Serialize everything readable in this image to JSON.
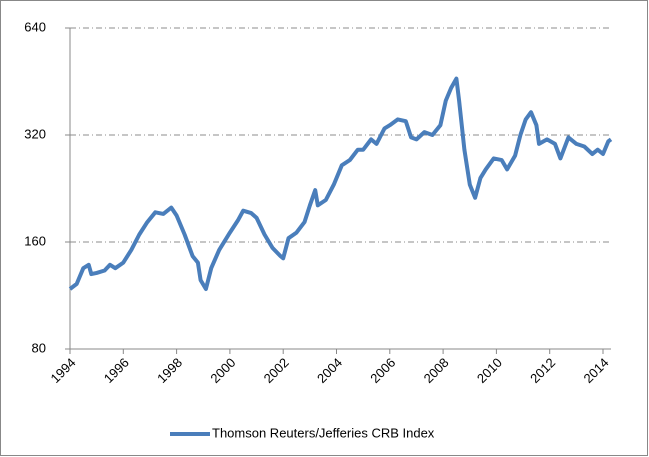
{
  "chart_data": {
    "type": "line",
    "log_scale_y": true,
    "grid": true,
    "legend": "bottom",
    "xlim": [
      1994,
      2014.3
    ],
    "xticks": [
      1994,
      1996,
      1998,
      2000,
      2002,
      2004,
      2006,
      2008,
      2010,
      2012,
      2014
    ],
    "ylim": [
      80,
      640
    ],
    "yticks": [
      80,
      160,
      320,
      640
    ],
    "x": [
      1994.0,
      1994.25,
      1994.5,
      1994.7,
      1994.8,
      1995.0,
      1995.3,
      1995.5,
      1995.7,
      1996.0,
      1996.3,
      1996.6,
      1996.9,
      1997.2,
      1997.5,
      1997.8,
      1998.0,
      1998.3,
      1998.6,
      1998.8,
      1998.9,
      1999.1,
      1999.3,
      1999.6,
      2000.0,
      2000.3,
      2000.5,
      2000.8,
      2001.0,
      2001.3,
      2001.6,
      2001.9,
      2002.0,
      2002.2,
      2002.5,
      2002.8,
      2003.0,
      2003.2,
      2003.3,
      2003.6,
      2003.9,
      2004.2,
      2004.5,
      2004.8,
      2005.0,
      2005.3,
      2005.5,
      2005.8,
      2006.0,
      2006.3,
      2006.6,
      2006.8,
      2007.0,
      2007.3,
      2007.6,
      2007.9,
      2008.1,
      2008.3,
      2008.5,
      2008.6,
      2008.8,
      2009.0,
      2009.2,
      2009.4,
      2009.6,
      2009.9,
      2010.2,
      2010.4,
      2010.7,
      2010.9,
      2011.1,
      2011.3,
      2011.5,
      2011.6,
      2011.9,
      2012.2,
      2012.4,
      2012.7,
      2013.0,
      2013.3,
      2013.6,
      2013.8,
      2014.0,
      2014.2,
      2014.3
    ],
    "series": [
      {
        "name": "Thomson Reuters/Jefferies CRB Index",
        "color": "#4a7ebb",
        "values": [
          118,
          122,
          135,
          138,
          130,
          131,
          133,
          138,
          135,
          140,
          152,
          168,
          182,
          194,
          192,
          200,
          190,
          168,
          146,
          140,
          125,
          118,
          135,
          152,
          170,
          184,
          196,
          193,
          187,
          168,
          154,
          146,
          144,
          164,
          170,
          182,
          203,
          224,
          203,
          210,
          232,
          263,
          272,
          291,
          291,
          311,
          302,
          334,
          341,
          354,
          350,
          315,
          311,
          326,
          320,
          341,
          400,
          434,
          461,
          400,
          291,
          232,
          213,
          242,
          256,
          275,
          272,
          256,
          280,
          320,
          354,
          371,
          341,
          302,
          311,
          302,
          275,
          315,
          302,
          297,
          283,
          291,
          283,
          307,
          311
        ]
      }
    ]
  }
}
